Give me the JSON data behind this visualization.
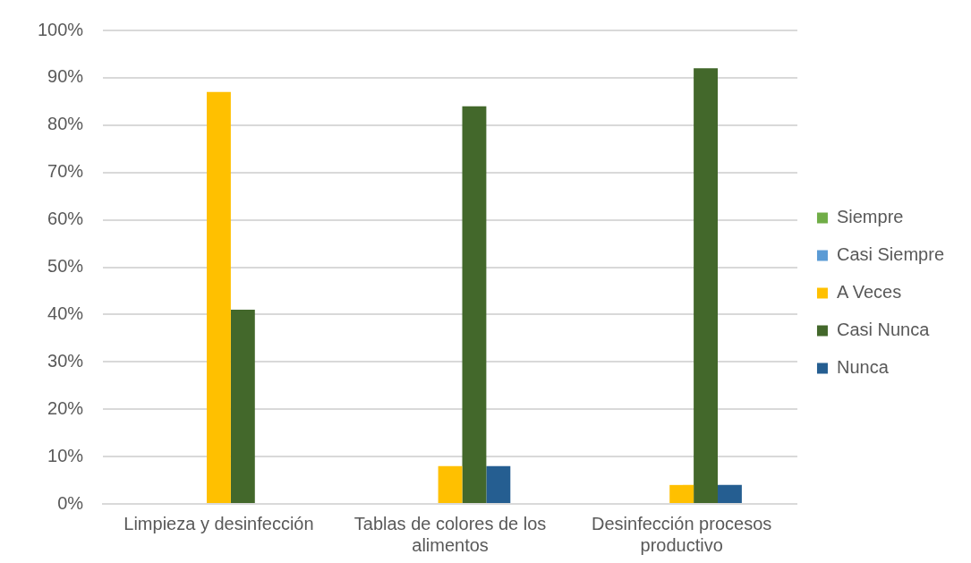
{
  "chart_data": {
    "type": "bar",
    "categories": [
      "Limpieza y desinfección",
      "Tablas de colores de los alimentos",
      "Desinfección procesos productivo"
    ],
    "series": [
      {
        "name": "Siempre",
        "color": "#70ad47",
        "values": [
          0,
          0,
          0
        ]
      },
      {
        "name": "Casi Siempre",
        "color": "#5b9bd5",
        "values": [
          0,
          0,
          0
        ]
      },
      {
        "name": "A Veces",
        "color": "#ffc000",
        "values": [
          87,
          8,
          4
        ]
      },
      {
        "name": "Casi Nunca",
        "color": "#43682b",
        "values": [
          41,
          84,
          92
        ]
      },
      {
        "name": "Nunca",
        "color": "#255e91",
        "values": [
          0,
          8,
          4
        ]
      }
    ],
    "ylim": [
      0,
      100
    ],
    "yticks": [
      {
        "value": 0,
        "label": "0%"
      },
      {
        "value": 10,
        "label": "10%"
      },
      {
        "value": 20,
        "label": "20%"
      },
      {
        "value": 30,
        "label": "30%"
      },
      {
        "value": 40,
        "label": "40%"
      },
      {
        "value": 50,
        "label": "50%"
      },
      {
        "value": 60,
        "label": "60%"
      },
      {
        "value": 70,
        "label": "70%"
      },
      {
        "value": 80,
        "label": "80%"
      },
      {
        "value": 90,
        "label": "90%"
      },
      {
        "value": 100,
        "label": "100%"
      }
    ],
    "grid": "y",
    "legend": "right"
  }
}
